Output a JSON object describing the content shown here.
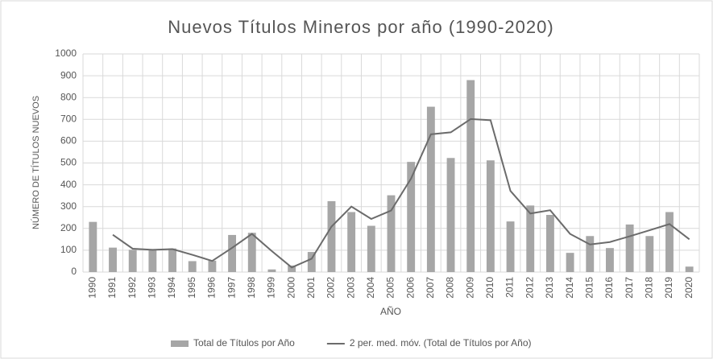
{
  "chart_data": {
    "type": "bar_line",
    "title": "Nuevos Títulos Mineros por año (1990-2020)",
    "x_label": "AÑO",
    "y_label": "NÚMERO DE TÍTULOS NUEVOS",
    "categories": [
      "1990",
      "1991",
      "1992",
      "1993",
      "1994",
      "1995",
      "1996",
      "1997",
      "1998",
      "1999",
      "2000",
      "2001",
      "2002",
      "2003",
      "2004",
      "2005",
      "2006",
      "2007",
      "2008",
      "2009",
      "2010",
      "2011",
      "2012",
      "2013",
      "2014",
      "2015",
      "2016",
      "2017",
      "2018",
      "2019",
      "2020"
    ],
    "series": [
      {
        "name": "Total de Títulos por Año",
        "type": "bar",
        "color": "#a6a6a6",
        "values": [
          230,
          112,
          102,
          102,
          108,
          50,
          52,
          170,
          180,
          12,
          30,
          92,
          325,
          275,
          212,
          352,
          505,
          758,
          523,
          880,
          512,
          232,
          305,
          262,
          88,
          165,
          110,
          218,
          165,
          275,
          25
        ]
      },
      {
        "name": "2 per. med. móv. (Total de Títulos por Año)",
        "type": "line",
        "color": "#6b6b6b",
        "values": [
          null,
          171,
          107,
          102,
          105,
          79,
          51,
          111,
          175,
          96,
          21,
          61,
          208.5,
          300,
          243.5,
          282,
          428.5,
          631.5,
          640.5,
          701.5,
          696,
          372,
          268.5,
          283.5,
          175,
          126.5,
          137.5,
          164,
          191.5,
          220,
          150
        ]
      }
    ],
    "ylim": [
      0,
      1000
    ],
    "yticks": [
      0,
      100,
      200,
      300,
      400,
      500,
      600,
      700,
      800,
      900,
      1000
    ],
    "grid": true,
    "legend": "bottom"
  }
}
